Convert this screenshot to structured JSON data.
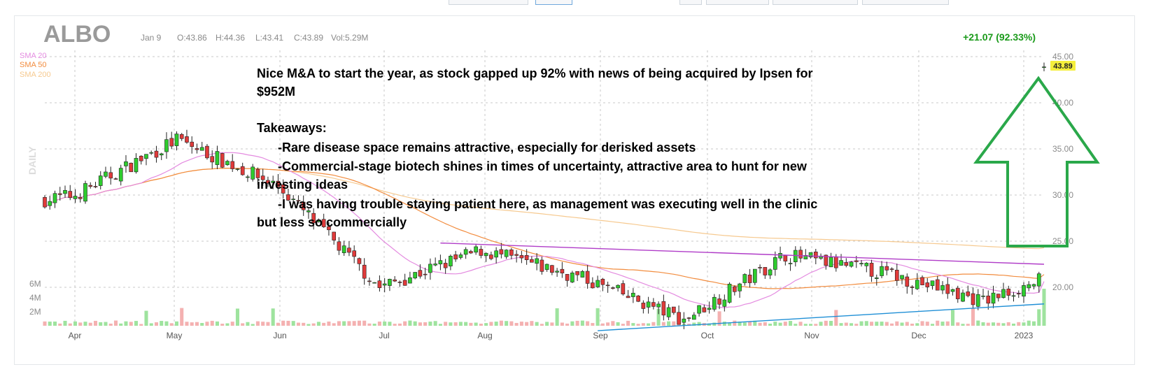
{
  "ticker": "ALBO",
  "ohlc_header": {
    "date": "Jan 9",
    "open": "O:43.86",
    "high": "H:44.36",
    "low": "L:43.41",
    "close": "C:43.89",
    "volume": "Vol:5.29M"
  },
  "change_label": "+21.07 (92.33%)",
  "interval_label": "DAILY",
  "legend": [
    {
      "name": "SMA 20",
      "color": "#e48be0"
    },
    {
      "name": "SMA 50",
      "color": "#f28c3e"
    },
    {
      "name": "SMA 200",
      "color": "#f6c98f"
    }
  ],
  "last_price_label": "43.89",
  "annotation_lines": [
    "Nice M&A to start the year, as stock gapped up 92% with news of being acquired by Ipsen for",
    "$952M",
    "",
    "Takeaways:",
    "      -Rare disease space remains attractive, especially for derisked assets",
    "      -Commercial-stage biotech shines in times of uncertainty, attractive area to hunt for new",
    "investing ideas",
    "      -I was having trouble staying patient here, as management was executing well in the clinic",
    "but less so commercially"
  ],
  "colors": {
    "up": "#2ecc2e",
    "down": "#e03a3a",
    "up_volume": "#9ee39e",
    "down_volume": "#f4b1b1",
    "resistance": "#b03cc8",
    "support": "#1f8fd6",
    "arrow": "#2aa84a",
    "change": "#1a9a1a"
  },
  "chart_data": {
    "type": "candlestick",
    "x_labels": [
      "Apr",
      "May",
      "Jun",
      "Jul",
      "Aug",
      "Sep",
      "Oct",
      "Nov",
      "Dec",
      "2023"
    ],
    "y_ticks": [
      "45.00",
      "40.00",
      "35.00",
      "30.00",
      "25.00",
      "20.00"
    ],
    "volume_ticks": [
      "6M",
      "4M",
      "2M"
    ],
    "ylim": [
      15,
      45
    ],
    "volume_max_millions": 8,
    "trading_days": 198,
    "anchor_days": [
      0,
      6,
      26,
      46,
      66,
      86,
      106,
      126,
      146,
      166,
      185,
      196
    ],
    "anchor_prices": [
      29.5,
      30.0,
      36.0,
      31.0,
      20.0,
      24.0,
      21.0,
      16.5,
      23.5,
      21.5,
      18.5,
      20.7
    ],
    "last_candle": {
      "open": 43.86,
      "high": 44.36,
      "low": 43.41,
      "close": 43.89,
      "volume_millions": 5.29
    },
    "trendlines": [
      {
        "name": "resistance",
        "from": [
          78,
          24.8
        ],
        "to": [
          197,
          22.5
        ]
      },
      {
        "name": "support",
        "from": [
          109,
          15.3
        ],
        "to": [
          197,
          18.2
        ]
      }
    ]
  }
}
